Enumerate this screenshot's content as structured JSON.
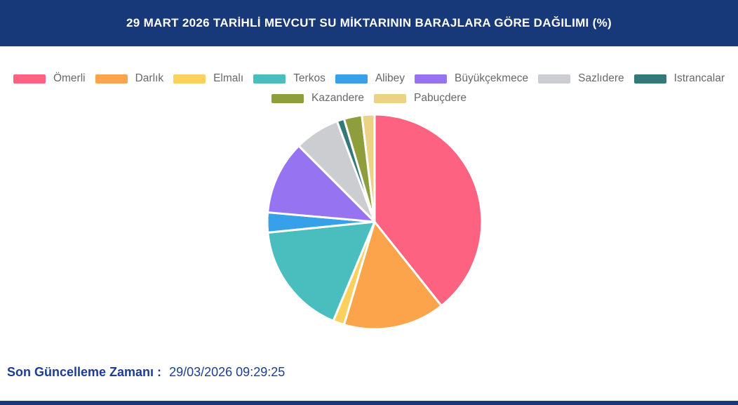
{
  "header": {
    "title": "29 MART 2026 TARİHLİ MEVCUT SU MİKTARININ BARAJLARA GÖRE DAĞILIMI (%)"
  },
  "colors": {
    "header_bg": "#173879",
    "bottom_bar": "#173879",
    "footer_text": "#1C3D92",
    "legend_label": "#686868",
    "slice_border": "#FFFFFF",
    "title_text": "#FFFFFF"
  },
  "chart_data": {
    "type": "pie",
    "title": "29 MART 2026 TARİHLİ MEVCUT SU MİKTARININ BARAJLARA GÖRE DAĞILIMI (%)",
    "unit": "%",
    "start_angle_deg": 0,
    "direction": "clockwise",
    "legend_position": "top",
    "grid": false,
    "series": [
      {
        "id": "omerli",
        "name": "Ömerli",
        "value": 39.3,
        "color": "#FD6380"
      },
      {
        "id": "darlik",
        "name": "Darlık",
        "value": 15.3,
        "color": "#FCA44C"
      },
      {
        "id": "elmali",
        "name": "Elmalı",
        "value": 1.7,
        "color": "#FCD05E"
      },
      {
        "id": "terkos",
        "name": "Terkos",
        "value": 17.1,
        "color": "#4ABDBE"
      },
      {
        "id": "alibey",
        "name": "Alibey",
        "value": 3.0,
        "color": "#36A0E9"
      },
      {
        "id": "buyukcekmece",
        "name": "Büyükçekmece",
        "value": 11.1,
        "color": "#9673F1"
      },
      {
        "id": "sazlidere",
        "name": "Sazlıdere",
        "value": 6.8,
        "color": "#CBCDD1"
      },
      {
        "id": "istrancalar",
        "name": "Istrancalar",
        "value": 1.1,
        "color": "#347878"
      },
      {
        "id": "kazandere",
        "name": "Kazandere",
        "value": 2.7,
        "color": "#8E9E3C"
      },
      {
        "id": "pabucdere",
        "name": "Pabuçdere",
        "value": 1.9,
        "color": "#EBD285"
      }
    ]
  },
  "footer": {
    "label": "Son Güncelleme Zamanı :",
    "value": "29/03/2026 09:29:25"
  }
}
